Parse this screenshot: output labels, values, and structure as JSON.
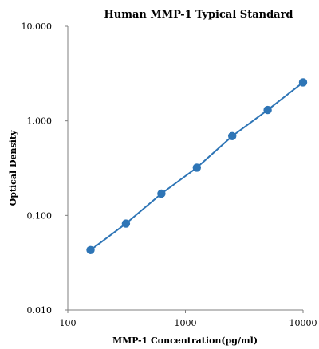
{
  "chart_data": {
    "type": "scatter",
    "title": "Human  MMP-1 Typical Standard",
    "xlabel": "MMP-1  Concentration(pg/ml)",
    "ylabel": "Optical Density",
    "x_scale": "log",
    "y_scale": "log",
    "xlim": [
      100,
      10000
    ],
    "ylim": [
      0.01,
      10
    ],
    "x_ticks": [
      100,
      1000,
      10000
    ],
    "x_tick_labels": [
      "100",
      "1000",
      "10000"
    ],
    "y_ticks": [
      0.01,
      0.1,
      1,
      10
    ],
    "y_tick_labels": [
      "0.010",
      "0.100",
      "1.000",
      "10.000"
    ],
    "grid": false,
    "legend": "none",
    "series": [
      {
        "x": [
          156,
          312,
          625,
          1250,
          2500,
          5000,
          10000
        ],
        "y": [
          0.043,
          0.082,
          0.17,
          0.32,
          0.69,
          1.3,
          2.55
        ],
        "color": "#2e75b6",
        "marker": "circle",
        "line": "fitted-curve"
      }
    ]
  }
}
